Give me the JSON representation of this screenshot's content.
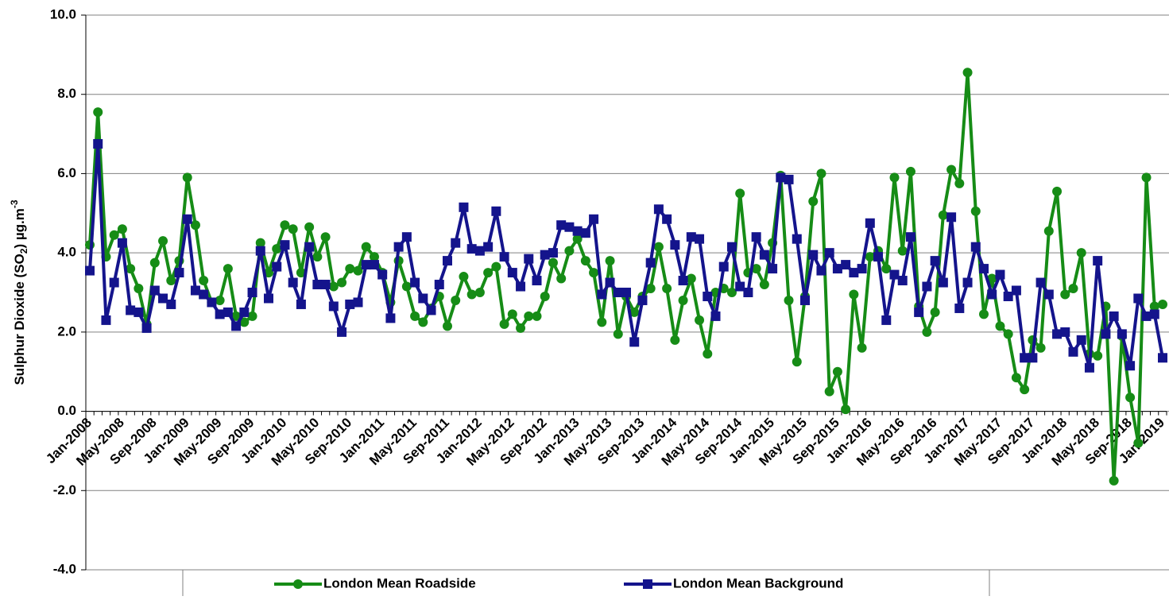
{
  "chart_data": {
    "type": "line",
    "ylabel": {
      "text": "Sulphur Dioxide (SO",
      "sub": "2",
      "rest": ") µg.m",
      "sup": "-3"
    },
    "categories": [
      "Jan-2008",
      null,
      null,
      null,
      "May-2008",
      null,
      null,
      null,
      "Sep-2008",
      null,
      null,
      null,
      "Jan-2009",
      null,
      null,
      null,
      "May-2009",
      null,
      null,
      null,
      "Sep-2009",
      null,
      null,
      null,
      "Jan-2010",
      null,
      null,
      null,
      "May-2010",
      null,
      null,
      null,
      "Sep-2010",
      null,
      null,
      null,
      "Jan-2011",
      null,
      null,
      null,
      "May-2011",
      null,
      null,
      null,
      "Sep-2011",
      null,
      null,
      null,
      "Jan-2012",
      null,
      null,
      null,
      "May-2012",
      null,
      null,
      null,
      "Sep-2012",
      null,
      null,
      null,
      "Jan-2013",
      null,
      null,
      null,
      "May-2013",
      null,
      null,
      null,
      "Sep-2013",
      null,
      null,
      null,
      "Jan-2014",
      null,
      null,
      null,
      "May-2014",
      null,
      null,
      null,
      "Sep-2014",
      null,
      null,
      null,
      "Jan-2015",
      null,
      null,
      null,
      "May-2015",
      null,
      null,
      null,
      "Sep-2015",
      null,
      null,
      null,
      "Jan-2016",
      null,
      null,
      null,
      "May-2016",
      null,
      null,
      null,
      "Sep-2016",
      null,
      null,
      null,
      "Jan-2017",
      null,
      null,
      null,
      "May-2017",
      null,
      null,
      null,
      "Sep-2017",
      null,
      null,
      null,
      "Jan-2018",
      null,
      null,
      null,
      "May-2018",
      null,
      null,
      null,
      "Sep-2018",
      null,
      null,
      null,
      "Jan-2019"
    ],
    "series": [
      {
        "name": "London Mean Roadside",
        "color": "#168c16",
        "marker": "circle",
        "values": [
          4.2,
          7.55,
          3.9,
          4.45,
          4.6,
          3.6,
          3.1,
          2.2,
          3.75,
          4.3,
          3.3,
          3.8,
          5.9,
          4.7,
          3.3,
          2.75,
          2.8,
          3.6,
          2.4,
          2.25,
          2.4,
          4.25,
          3.5,
          4.1,
          4.7,
          4.6,
          3.5,
          4.65,
          3.9,
          4.4,
          3.15,
          3.25,
          3.6,
          3.55,
          4.15,
          3.9,
          3.5,
          2.75,
          3.8,
          3.15,
          2.4,
          2.25,
          2.6,
          2.9,
          2.15,
          2.8,
          3.4,
          2.95,
          3.0,
          3.5,
          3.65,
          2.2,
          2.45,
          2.1,
          2.4,
          2.4,
          2.9,
          3.75,
          3.35,
          4.05,
          4.35,
          3.8,
          3.5,
          2.25,
          3.8,
          1.95,
          2.9,
          2.5,
          2.9,
          3.1,
          4.15,
          3.1,
          1.8,
          2.8,
          3.35,
          2.3,
          1.45,
          3.0,
          3.1,
          3.0,
          5.5,
          3.5,
          3.6,
          3.2,
          4.25,
          5.95,
          2.8,
          1.25,
          2.9,
          5.3,
          6.0,
          0.5,
          1.0,
          0.05,
          2.95,
          1.6,
          3.9,
          4.05,
          3.6,
          5.9,
          4.05,
          6.05,
          2.65,
          2.0,
          2.5,
          4.95,
          6.1,
          5.75,
          8.55,
          5.05,
          2.45,
          3.35,
          2.15,
          1.95,
          0.85,
          0.55,
          1.8,
          1.6,
          4.55,
          5.55,
          2.95,
          3.1,
          4.0,
          1.45,
          1.4,
          2.65,
          -1.75,
          1.9,
          0.35,
          -0.8,
          5.9,
          2.65,
          2.7
        ]
      },
      {
        "name": "London Mean Background",
        "color": "#14148c",
        "marker": "square",
        "values": [
          3.55,
          6.75,
          2.3,
          3.25,
          4.25,
          2.55,
          2.5,
          2.1,
          3.05,
          2.85,
          2.7,
          3.5,
          4.85,
          3.05,
          2.95,
          2.75,
          2.45,
          2.5,
          2.15,
          2.5,
          3.0,
          4.05,
          2.85,
          3.65,
          4.2,
          3.25,
          2.7,
          4.15,
          3.2,
          3.2,
          2.65,
          2.0,
          2.7,
          2.75,
          3.7,
          3.7,
          3.45,
          2.35,
          4.15,
          4.4,
          3.25,
          2.85,
          2.55,
          3.2,
          3.8,
          4.25,
          5.15,
          4.1,
          4.05,
          4.15,
          5.05,
          3.9,
          3.5,
          3.15,
          3.85,
          3.3,
          3.95,
          4.0,
          4.7,
          4.65,
          4.55,
          4.5,
          4.85,
          2.95,
          3.25,
          3.0,
          3.0,
          1.75,
          2.8,
          3.75,
          5.1,
          4.85,
          4.2,
          3.3,
          4.4,
          4.35,
          2.9,
          2.4,
          3.65,
          4.15,
          3.15,
          3.0,
          4.4,
          3.95,
          3.6,
          5.9,
          5.85,
          4.35,
          2.8,
          3.95,
          3.55,
          4.0,
          3.6,
          3.7,
          3.5,
          3.6,
          4.75,
          3.9,
          2.3,
          3.45,
          3.3,
          4.4,
          2.5,
          3.15,
          3.8,
          3.25,
          4.9,
          2.6,
          3.25,
          4.15,
          3.6,
          2.95,
          3.45,
          2.9,
          3.05,
          1.35,
          1.35,
          3.25,
          2.95,
          1.95,
          2.0,
          1.5,
          1.8,
          1.1,
          3.8,
          1.95,
          2.4,
          1.95,
          1.15,
          2.85,
          2.4,
          2.45,
          1.35
        ]
      }
    ],
    "ylim": [
      -4,
      10
    ],
    "yticks": [
      {
        "value": -4,
        "label": "-4.0"
      },
      {
        "value": -2,
        "label": "-2.0"
      },
      {
        "value": 0,
        "label": "0.0"
      },
      {
        "value": 2,
        "label": "2.0"
      },
      {
        "value": 4,
        "label": "4.0"
      },
      {
        "value": 6,
        "label": "6.0"
      },
      {
        "value": 8,
        "label": "8.0"
      },
      {
        "value": 10,
        "label": "10.0"
      }
    ],
    "grid": true,
    "legend": "bottom"
  }
}
